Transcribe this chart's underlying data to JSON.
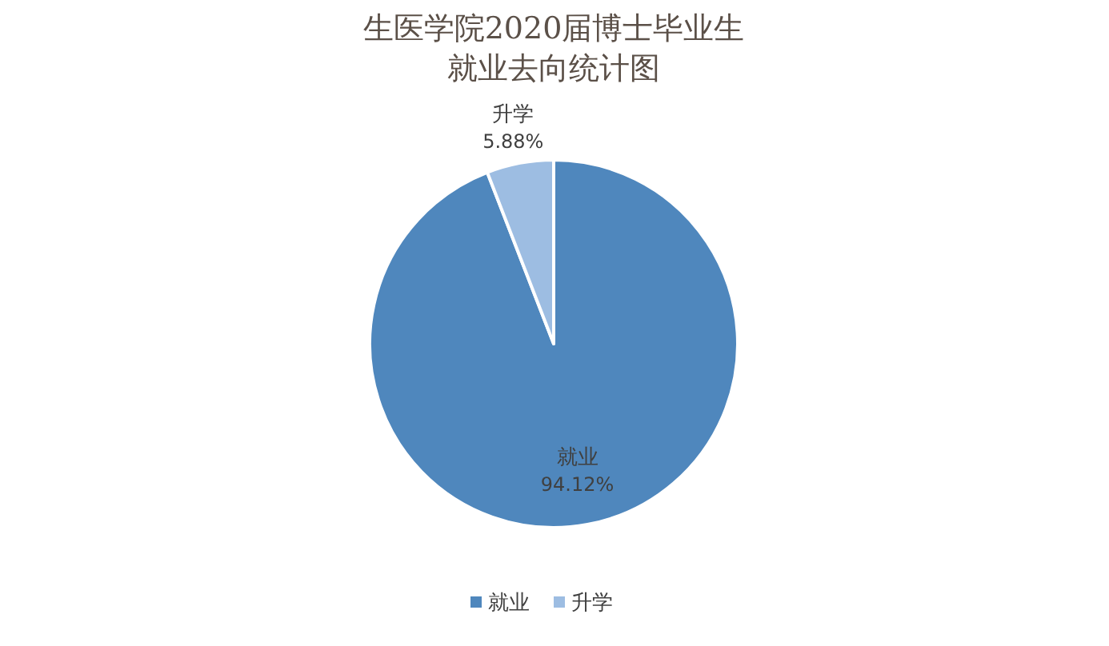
{
  "chart_data": {
    "type": "pie",
    "title": "生医学院2020届博士毕业生就业去向统计图",
    "categories": [
      "就业",
      "升学"
    ],
    "values": [
      94.12,
      5.88
    ],
    "colors": [
      "#4f87bd",
      "#9dbde2"
    ],
    "value_labels": [
      "94.12%",
      "5.88%"
    ],
    "legend": "bottom"
  }
}
